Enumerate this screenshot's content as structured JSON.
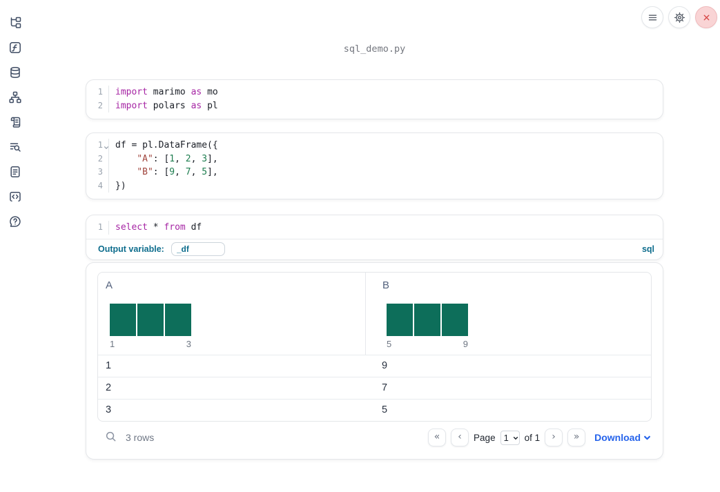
{
  "app": {
    "filename": "sql_demo.py"
  },
  "colors": {
    "accent_teal": "#0d6e5a",
    "sql_accent": "#0e6d8d",
    "link_blue": "#2563eb",
    "keyword": "#a626a4",
    "string": "#a0443c",
    "number": "#1d7d4f",
    "icon_slate": "#3f4c63",
    "close_red": "#d64545",
    "close_bg": "#f9d4d5"
  },
  "sidebar": {
    "icons": [
      "file-tree-icon",
      "function-square-icon",
      "database-icon",
      "dependency-graph-icon",
      "scroll-icon",
      "list-search-icon",
      "document-icon",
      "code-snippet-icon",
      "help-bubble-icon"
    ]
  },
  "header": {
    "icons": [
      "menu-icon",
      "gear-icon",
      "close-icon"
    ]
  },
  "cells": [
    {
      "kind": "python",
      "lines": [
        {
          "n": "1",
          "tokens": [
            {
              "c": "kw",
              "t": "import"
            },
            {
              "c": "",
              "t": " marimo "
            },
            {
              "c": "kw",
              "t": "as"
            },
            {
              "c": "",
              "t": " mo"
            }
          ]
        },
        {
          "n": "2",
          "tokens": [
            {
              "c": "kw",
              "t": "import"
            },
            {
              "c": "",
              "t": " polars "
            },
            {
              "c": "kw",
              "t": "as"
            },
            {
              "c": "",
              "t": " pl"
            }
          ]
        }
      ]
    },
    {
      "kind": "python",
      "lines": [
        {
          "n": "1",
          "fold": true,
          "tokens": [
            {
              "c": "",
              "t": "df = pl.DataFrame({"
            }
          ]
        },
        {
          "n": "2",
          "tokens": [
            {
              "c": "",
              "t": "    "
            },
            {
              "c": "str",
              "t": "\"A\""
            },
            {
              "c": "",
              "t": ": ["
            },
            {
              "c": "num",
              "t": "1"
            },
            {
              "c": "",
              "t": ", "
            },
            {
              "c": "num",
              "t": "2"
            },
            {
              "c": "",
              "t": ", "
            },
            {
              "c": "num",
              "t": "3"
            },
            {
              "c": "",
              "t": "],"
            }
          ]
        },
        {
          "n": "3",
          "tokens": [
            {
              "c": "",
              "t": "    "
            },
            {
              "c": "str",
              "t": "\"B\""
            },
            {
              "c": "",
              "t": ": ["
            },
            {
              "c": "num",
              "t": "9"
            },
            {
              "c": "",
              "t": ", "
            },
            {
              "c": "num",
              "t": "7"
            },
            {
              "c": "",
              "t": ", "
            },
            {
              "c": "num",
              "t": "5"
            },
            {
              "c": "",
              "t": "],"
            }
          ]
        },
        {
          "n": "4",
          "tokens": [
            {
              "c": "",
              "t": "})"
            }
          ]
        }
      ]
    },
    {
      "kind": "sql",
      "lines": [
        {
          "n": "1",
          "tokens": [
            {
              "c": "kw",
              "t": "select"
            },
            {
              "c": "",
              "t": " * "
            },
            {
              "c": "kw",
              "t": "from"
            },
            {
              "c": "",
              "t": " df"
            }
          ]
        }
      ],
      "footer": {
        "output_variable_label": "Output variable:",
        "output_variable_value": "_df",
        "language_badge": "sql"
      }
    }
  ],
  "table": {
    "columns": [
      {
        "name": "A",
        "histogram": {
          "bar_count": 3,
          "min_label": "1",
          "max_label": "3"
        }
      },
      {
        "name": "B",
        "histogram": {
          "bar_count": 3,
          "min_label": "5",
          "max_label": "9"
        }
      }
    ],
    "rows": [
      [
        "1",
        "9"
      ],
      [
        "2",
        "7"
      ],
      [
        "3",
        "5"
      ]
    ],
    "footer": {
      "row_count": "3 rows",
      "page_label": "Page",
      "page_value": "1",
      "of_label": "of 1",
      "download_label": "Download"
    }
  },
  "pagination_icons": {
    "first": "«",
    "prev": "‹",
    "next": "›",
    "last": "»"
  }
}
